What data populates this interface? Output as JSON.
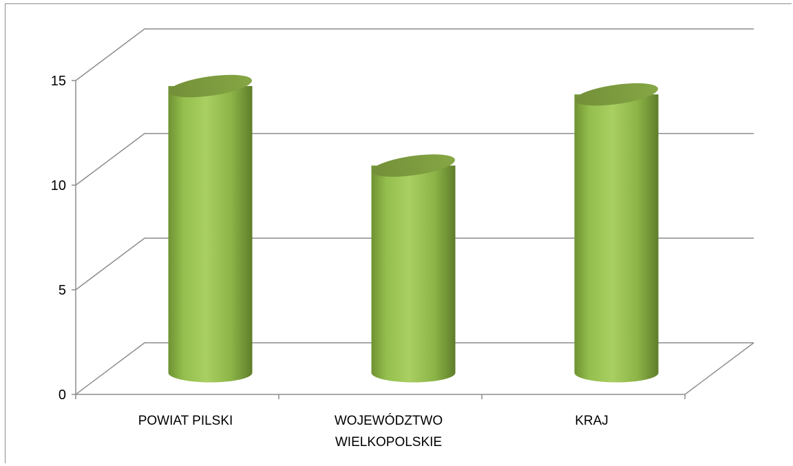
{
  "chart_data": {
    "type": "bar",
    "style": "3d-cylinder",
    "categories": [
      "POWIAT PILSKI",
      "WOJEWÓDZTWO WIELKOPOLSKIE",
      "KRAJ"
    ],
    "category_lines": [
      [
        "POWIAT PILSKI"
      ],
      [
        "WOJEWÓDZTWO",
        "WIELKOPOLSKIE"
      ],
      [
        "KRAJ"
      ]
    ],
    "values": [
      13.7,
      9.9,
      13.3
    ],
    "ylim": [
      0,
      15
    ],
    "yticks": [
      0,
      5,
      10,
      15
    ],
    "grid": true,
    "legend": "none",
    "colors": {
      "bar_light": "#a9cf62",
      "bar_mid": "#8db548",
      "bar_dark": "#5f7d2a",
      "top_cap": "#7e9e3e",
      "grid": "#8c8c8c"
    }
  }
}
